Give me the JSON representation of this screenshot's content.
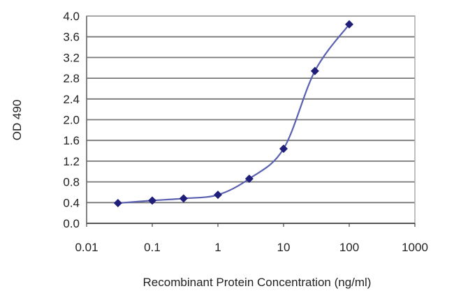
{
  "chart_data": {
    "type": "line",
    "title": "",
    "xlabel": "Recombinant Protein Concentration (ng/ml)",
    "ylabel": "OD 490",
    "xscale": "log",
    "xlim": [
      0.01,
      1000
    ],
    "ylim": [
      0.0,
      4.0
    ],
    "x_ticks": [
      "0.01",
      "0.1",
      "1",
      "10",
      "100",
      "1000"
    ],
    "y_ticks": [
      "0.0",
      "0.4",
      "0.8",
      "1.2",
      "1.6",
      "2.0",
      "2.4",
      "2.8",
      "3.2",
      "3.6",
      "4.0"
    ],
    "grid": "horizontal",
    "legend": "none",
    "series": [
      {
        "color": "#1f1f7a",
        "line_color": "#5a5fb0",
        "marker": "diamond",
        "x": [
          0.03,
          0.1,
          0.3,
          1,
          3,
          10,
          30,
          100
        ],
        "y": [
          0.39,
          0.44,
          0.48,
          0.55,
          0.86,
          1.44,
          2.94,
          3.84
        ]
      }
    ]
  }
}
